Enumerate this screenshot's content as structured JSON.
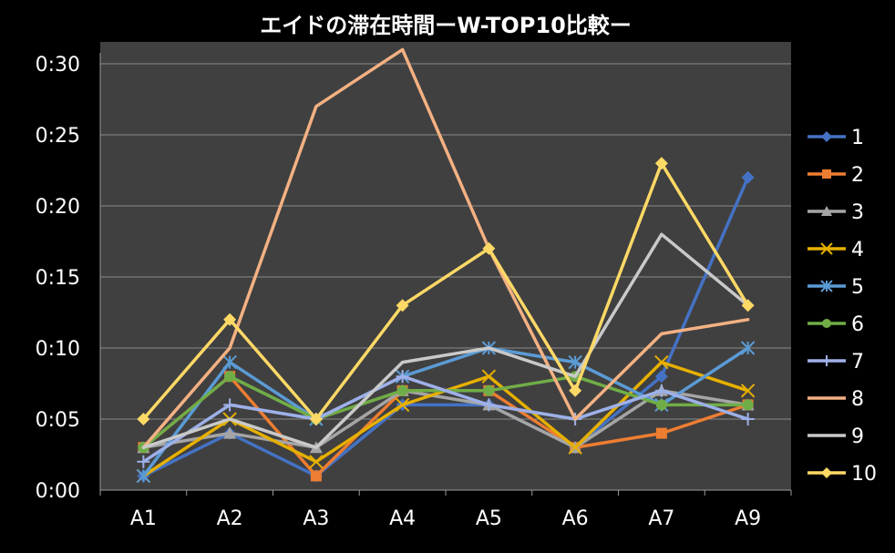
{
  "chart_data": {
    "type": "line",
    "title": "エイドの滞在時間ーW-TOP10比較ー",
    "categories": [
      "A1",
      "A2",
      "A3",
      "A4",
      "A5",
      "A6",
      "A7",
      "A9"
    ],
    "y_tick_labels": [
      "0:00",
      "0:05",
      "0:10",
      "0:15",
      "0:20",
      "0:25",
      "0:30"
    ],
    "y_unit": "seconds",
    "ylim": [
      0,
      30
    ],
    "grid": true,
    "legend_position": "right",
    "background": "#404040",
    "series": [
      {
        "name": "1",
        "color": "#4472C4",
        "marker": "diamond",
        "values": [
          1,
          4,
          1,
          6,
          6,
          3,
          8,
          22
        ]
      },
      {
        "name": "2",
        "color": "#ED7D31",
        "marker": "square",
        "values": [
          3,
          8,
          1,
          7,
          7,
          3,
          4,
          6
        ]
      },
      {
        "name": "3",
        "color": "#A5A5A5",
        "marker": "triangle",
        "values": [
          3,
          4,
          3,
          7,
          6,
          3,
          7,
          6
        ]
      },
      {
        "name": "4",
        "color": "#E6B000",
        "marker": "x",
        "values": [
          1,
          5,
          2,
          6,
          8,
          3,
          9,
          7
        ]
      },
      {
        "name": "5",
        "color": "#5B9BD5",
        "marker": "asterisk",
        "values": [
          1,
          9,
          5,
          8,
          10,
          9,
          6,
          10
        ]
      },
      {
        "name": "6",
        "color": "#70AD47",
        "marker": "circle",
        "values": [
          3,
          8,
          5,
          7,
          7,
          8,
          6,
          6
        ]
      },
      {
        "name": "7",
        "color": "#9DB0E8",
        "marker": "plus",
        "values": [
          2,
          6,
          5,
          8,
          6,
          5,
          7,
          5
        ]
      },
      {
        "name": "8",
        "color": "#F4B183",
        "marker": "none",
        "values": [
          3,
          10,
          27,
          31,
          17,
          5,
          11,
          12
        ]
      },
      {
        "name": "9",
        "color": "#C9C9C9",
        "marker": "none",
        "values": [
          3,
          5,
          3,
          9,
          10,
          8,
          18,
          13
        ]
      },
      {
        "name": "10",
        "color": "#FFD966",
        "marker": "diamond",
        "values": [
          5,
          12,
          5,
          13,
          17,
          7,
          23,
          13
        ]
      }
    ]
  }
}
